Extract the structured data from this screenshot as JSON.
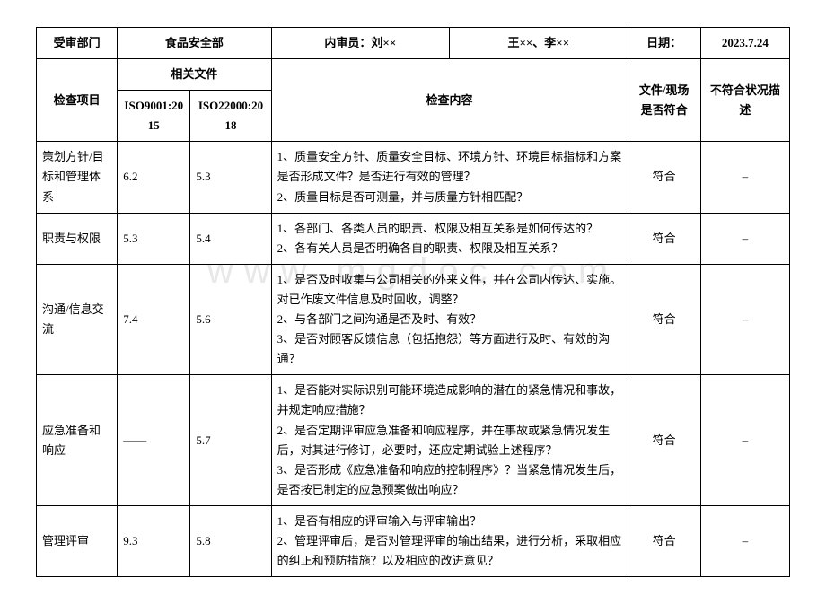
{
  "header": {
    "dept_label": "受审部门",
    "dept_value": "食品安全部",
    "auditor_label": "内审员：刘××",
    "team_value": "王××、李××",
    "date_label": "日期：",
    "date_value": "2023.7.24"
  },
  "subheader": {
    "item_label": "检查项目",
    "related_label": "相关文件",
    "iso1_label": "ISO9001:2015",
    "iso2_label": "ISO22000:2018",
    "content_label": "检查内容",
    "comply_label": "文件/现场是否符合",
    "desc_label": "不符合状况描述"
  },
  "rows": [
    {
      "item": "策划方针/目标和管理体系",
      "iso1": "6.2",
      "iso2": "5.3",
      "content": "1、质量安全方针、质量安全目标、环境方针、环境目标指标和方案是否形成文件？是否进行有效的管理？\n2、质量目标是否可测量，并与质量方针相匹配？",
      "comply": "符合",
      "desc": "–"
    },
    {
      "item": "职责与权限",
      "iso1": "5.3",
      "iso2": "5.4",
      "content": "1、各部门、各类人员的职责、权限及相互关系是如何传达的？\n2、各有关人员是否明确各自的职责、权限及相互关系？",
      "comply": "符合",
      "desc": "–"
    },
    {
      "item": "沟通/信息交流",
      "iso1": "7.4",
      "iso2": "5.6",
      "content": "1、是否及时收集与公司相关的外来文件，并在公司内传达、实施。对已作废文件信息及时回收，调整？\n2、与各部门之间沟通是否及时、有效？\n3、是否对顾客反馈信息（包括抱怨）等方面进行及时、有效的沟通？",
      "comply": "符合",
      "desc": "–"
    },
    {
      "item": "应急准备和响应",
      "iso1": "——",
      "iso2": "5.7",
      "content": "1、是否能对实际识别可能环境造成影响的潜在的紧急情况和事故，并规定响应措施？\n2、是否定期评审应急准备和响应程序，并在事故或紧急情况发生后，对其进行修订，必要时，还应定期试验上述程序？\n3、是否形成《应急准备和响应的控制程序》？当紧急情况发生后，是否按已制定的应急预案做出响应？",
      "comply": "符合",
      "desc": "–"
    },
    {
      "item": "管理评审",
      "iso1": "9.3",
      "iso2": "5.8",
      "content": "1、是否有相应的评审输入与评审输出？\n2、管理评审后，是否对管理评审的输出结果，进行分析，采取相应的纠正和预防措施？以及相应的改进意见？",
      "comply": "符合",
      "desc": "–"
    }
  ],
  "watermark": "www.mgdoc.com"
}
